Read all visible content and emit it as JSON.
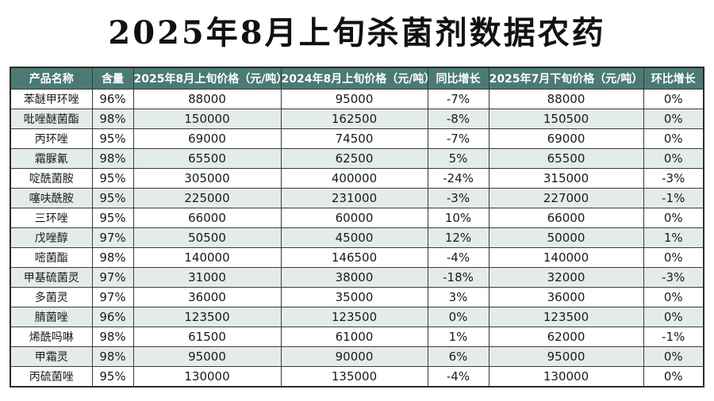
{
  "title": "2025年8月上旬杀菌剂数据农药",
  "columns": [
    "产品名称",
    "含量",
    "2025年8月上旬价格（元/吨）",
    "2024年8月上旬价格（元/吨）",
    "同比增长",
    "2025年7月下旬价格（元/吨）",
    "环比增长"
  ],
  "rows": [
    [
      "苯醚甲环唑",
      "96%",
      "88000",
      "95000",
      "-7%",
      "88000",
      "0%"
    ],
    [
      "吡唑醚菌酯",
      "98%",
      "150000",
      "162500",
      "-8%",
      "150500",
      "0%"
    ],
    [
      "丙环唑",
      "95%",
      "69000",
      "74500",
      "-7%",
      "69000",
      "0%"
    ],
    [
      "霜脲氰",
      "98%",
      "65500",
      "62500",
      "5%",
      "65500",
      "0%"
    ],
    [
      "啶酰菌胺",
      "95%",
      "305000",
      "400000",
      "-24%",
      "315000",
      "-3%"
    ],
    [
      "噻呋酰胺",
      "95%",
      "225000",
      "231000",
      "-3%",
      "227000",
      "-1%"
    ],
    [
      "三环唑",
      "95%",
      "66000",
      "60000",
      "10%",
      "66000",
      "0%"
    ],
    [
      "戊唑醇",
      "97%",
      "50500",
      "45000",
      "12%",
      "50000",
      "1%"
    ],
    [
      "嘧菌酯",
      "98%",
      "140000",
      "146500",
      "-4%",
      "140000",
      "0%"
    ],
    [
      "甲基硫菌灵",
      "97%",
      "31000",
      "38000",
      "-18%",
      "32000",
      "-3%"
    ],
    [
      "多菌灵",
      "97%",
      "36000",
      "35000",
      "3%",
      "36000",
      "0%"
    ],
    [
      "腈菌唑",
      "96%",
      "123500",
      "123500",
      "0%",
      "123500",
      "0%"
    ],
    [
      "烯酰吗啉",
      "98%",
      "61500",
      "61000",
      "1%",
      "62000",
      "-1%"
    ],
    [
      "甲霜灵",
      "98%",
      "95000",
      "90000",
      "6%",
      "95000",
      "0%"
    ],
    [
      "丙硫菌唑",
      "95%",
      "130000",
      "135000",
      "-4%",
      "130000",
      "0%"
    ]
  ],
  "colors": {
    "header_bg": "#4b7a74",
    "header_text": "#ffffff",
    "stripe_bg": "#e4ecea",
    "border": "#3a3a3a"
  }
}
